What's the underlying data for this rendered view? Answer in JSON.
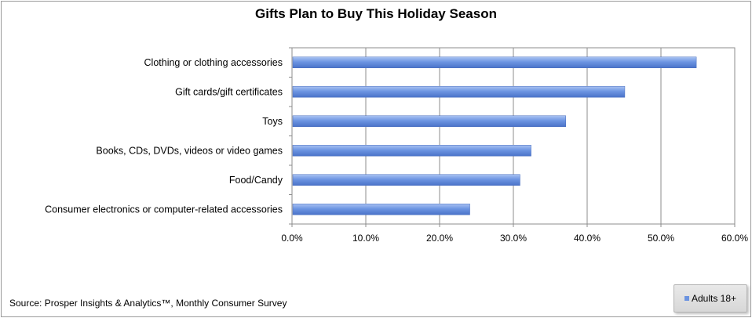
{
  "chart_data": {
    "type": "bar",
    "orientation": "horizontal",
    "title": "Gifts Plan to Buy This Holiday Season",
    "categories": [
      "Clothing or clothing accessories",
      "Gift cards/gift certificates",
      "Toys",
      "Books, CDs, DVDs, videos or video games",
      "Food/Candy",
      "Consumer electronics or computer-related accessories"
    ],
    "series": [
      {
        "name": "Adults 18+",
        "values": [
          54.8,
          45.1,
          37.1,
          32.4,
          30.9,
          24.1
        ],
        "color": "#6b93e0"
      }
    ],
    "xlim": [
      0,
      60
    ],
    "xticks": [
      "0.0%",
      "10.0%",
      "20.0%",
      "30.0%",
      "40.0%",
      "50.0%",
      "60.0%"
    ],
    "grid": true,
    "legend_position": "bottom-right",
    "source": "Source: Prosper Insights & Analytics™, Monthly Consumer Survey"
  }
}
